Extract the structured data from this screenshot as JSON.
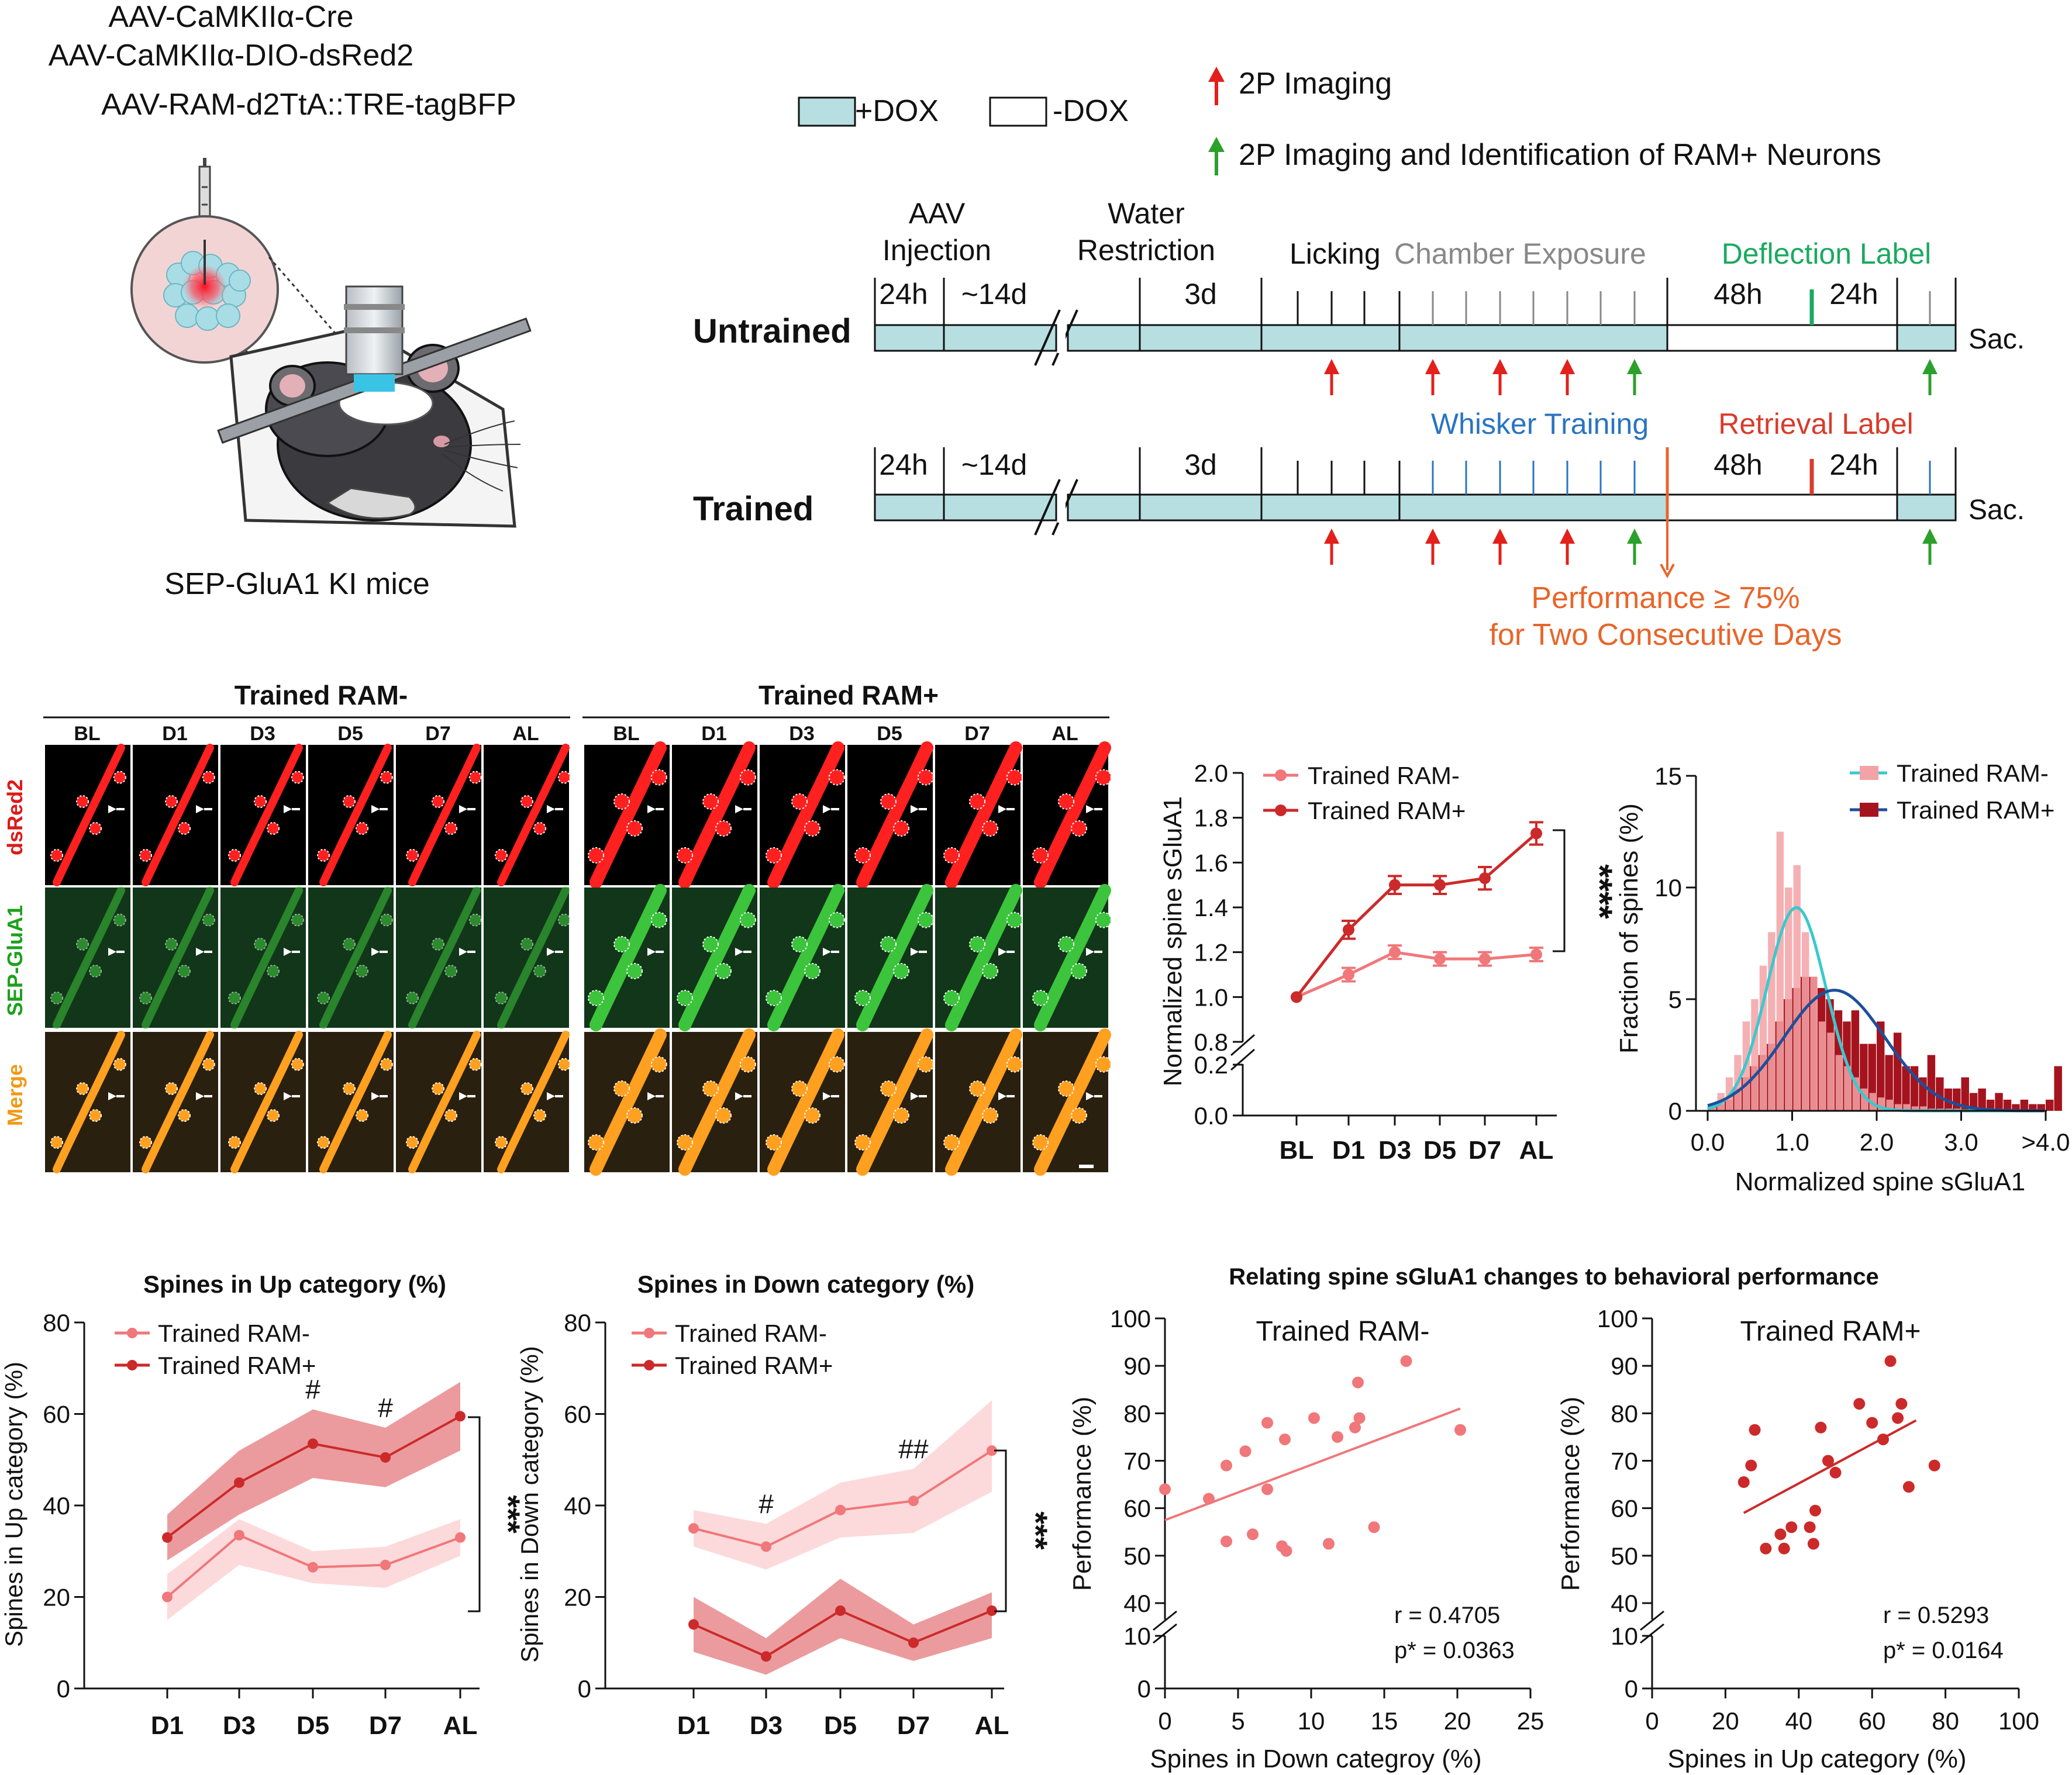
{
  "colors": {
    "dox": "#b7dfe1",
    "red_arrow": "#e3201b",
    "green_arrow": "#2ca02c",
    "deflection": "#1aaa60",
    "whisker": "#2a74c0",
    "retrieval": "#d93b2b",
    "performance": "#e8652a",
    "ram_minus": "#f0777a",
    "ram_plus": "#cc2a2a",
    "hist_cyan": "#39c9cf",
    "hist_blue": "#1d4f9a",
    "hist_pink": "#f3a2a6",
    "hist_dark": "#a5141e",
    "merge_label": "#f09a18"
  },
  "panelA": {
    "viruses": [
      "AAV-CaMKIIα-Cre",
      "AAV-CaMKIIα-DIO-dsRed2",
      "AAV-RAM-d2TtA::TRE-tagBFP"
    ],
    "mouse_label": "SEP-GluA1 KI mice"
  },
  "panelB": {
    "legend": {
      "dox_on": "+DOX",
      "dox_off": "-DOX",
      "red_arrow": "2P Imaging",
      "green_arrow": "2P Imaging  and Identification of RAM+ Neurons"
    },
    "phases": {
      "aav_1": "AAV",
      "aav_2": "Injection",
      "water_1": "Water",
      "water_2": "Restriction",
      "licking": "Licking",
      "chamber": "Chamber Exposure",
      "deflection": "Deflection Label",
      "whisker": "Whisker Training",
      "retrieval": "Retrieval Label"
    },
    "durations": {
      "d24h": "24h",
      "d14d": "~14d",
      "d3d": "3d",
      "d48h": "48h"
    },
    "rows": {
      "untrained": "Untrained",
      "trained": "Trained",
      "sac": "Sac."
    },
    "performance": [
      "Performance ≥ 75%",
      "for Two Consecutive Days"
    ]
  },
  "panelC": {
    "group_minus": "Trained RAM-",
    "group_plus": "Trained RAM+",
    "timepoints": [
      "BL",
      "D1",
      "D3",
      "D5",
      "D7",
      "AL"
    ],
    "channels": [
      "dsRed2",
      "SEP-GluA1",
      "Merge"
    ]
  },
  "chart_data": [
    {
      "type": "line",
      "title": "",
      "xlabel": "",
      "ylabel": "Normalized spine sGluA1",
      "categories": [
        "BL",
        "D1",
        "D3",
        "D5",
        "D7",
        "AL"
      ],
      "ylim": [
        0,
        2.0
      ],
      "yticks": [
        "0.0",
        "0.2",
        "0.8",
        "1.0",
        "1.2",
        "1.4",
        "1.6",
        "1.8",
        "2.0"
      ],
      "series": [
        {
          "name": "Trained RAM-",
          "values": [
            1.0,
            1.1,
            1.2,
            1.17,
            1.17,
            1.19
          ],
          "err": [
            0.0,
            0.03,
            0.03,
            0.03,
            0.03,
            0.03
          ]
        },
        {
          "name": "Trained RAM+",
          "values": [
            1.0,
            1.3,
            1.5,
            1.5,
            1.53,
            1.73
          ],
          "err": [
            0.0,
            0.04,
            0.04,
            0.04,
            0.05,
            0.05
          ]
        }
      ],
      "annotation": "****"
    },
    {
      "type": "histogram",
      "xlabel": "Normalized spine sGluA1",
      "ylabel": "Fraction of spines (%)",
      "xticks": [
        "0.0",
        "1.0",
        "2.0",
        "3.0",
        ">4.0"
      ],
      "yticks": [
        "0",
        "5",
        "10",
        "15"
      ],
      "ylim": [
        0,
        15
      ],
      "bin_width": 0.1,
      "series": [
        {
          "name": "Trained RAM-",
          "values": [
            0.3,
            0.8,
            1.5,
            2.5,
            4.0,
            5.0,
            6.5,
            8.0,
            12.5,
            10.0,
            11.0,
            8.0,
            6.0,
            4.0,
            3.5,
            2.5,
            2.0,
            1.5,
            1.0,
            0.8,
            0.6,
            0.5,
            0.3,
            0.3,
            0.2,
            0.2,
            0.1,
            0.1,
            0.1,
            0.1
          ]
        },
        {
          "name": "Trained RAM+",
          "values": [
            0.2,
            0.3,
            0.5,
            1.0,
            1.5,
            2.0,
            2.5,
            3.0,
            4.0,
            5.0,
            5.5,
            6.0,
            6.0,
            5.5,
            5.0,
            4.5,
            4.0,
            4.5,
            3.0,
            3.0,
            4.0,
            2.5,
            3.5,
            2.0,
            2.0,
            1.5,
            2.5,
            1.5,
            1.0,
            1.0,
            1.5,
            0.8,
            1.0,
            0.5,
            0.8,
            0.5,
            0.3,
            0.5,
            0.3,
            0.3,
            0.5,
            2.0
          ]
        }
      ],
      "fits": [
        {
          "name": "Trained RAM-",
          "mean": 1.05,
          "sd": 0.35,
          "peak": 9.1
        },
        {
          "name": "Trained RAM+",
          "mean": 1.5,
          "sd": 0.6,
          "peak": 5.4
        }
      ]
    },
    {
      "type": "line",
      "title": "Spines in Up category (%)",
      "ylabel": "Spines in Up category (%)",
      "categories": [
        "D1",
        "D3",
        "D5",
        "D7",
        "AL"
      ],
      "ylim": [
        0,
        80
      ],
      "yticks": [
        "0",
        "20",
        "40",
        "60",
        "80"
      ],
      "series": [
        {
          "name": "Trained RAM-",
          "values": [
            20,
            33.5,
            26.5,
            27,
            33
          ],
          "lower": [
            15,
            27,
            23,
            22,
            29
          ],
          "upper": [
            25,
            37,
            30,
            31,
            37
          ]
        },
        {
          "name": "Trained RAM+",
          "values": [
            33,
            45,
            53.5,
            50.5,
            59.5
          ],
          "lower": [
            28,
            38,
            46,
            44,
            52
          ],
          "upper": [
            38,
            52,
            61,
            57,
            67
          ]
        }
      ],
      "markers": [
        {
          "category": "D5",
          "text": "#"
        },
        {
          "category": "D7",
          "text": "#"
        }
      ],
      "annotation": "***"
    },
    {
      "type": "line",
      "title": "Spines in Down category (%)",
      "ylabel": "Spines in Down category (%)",
      "categories": [
        "D1",
        "D3",
        "D5",
        "D7",
        "AL"
      ],
      "ylim": [
        0,
        80
      ],
      "yticks": [
        "0",
        "20",
        "40",
        "60",
        "80"
      ],
      "series": [
        {
          "name": "Trained RAM-",
          "values": [
            35,
            31,
            39,
            41,
            52
          ],
          "lower": [
            31,
            26,
            33,
            34,
            43
          ],
          "upper": [
            39,
            36,
            45,
            48,
            63
          ]
        },
        {
          "name": "Trained RAM+",
          "values": [
            14,
            7,
            17,
            10,
            17
          ],
          "lower": [
            8,
            3,
            11,
            6,
            11
          ],
          "upper": [
            20,
            11,
            24,
            14,
            21
          ]
        }
      ],
      "markers": [
        {
          "category": "D3",
          "text": "#"
        },
        {
          "category": "D7",
          "text": "##"
        }
      ],
      "annotation": "***"
    },
    {
      "type": "scatter",
      "title": "Trained RAM-",
      "xlabel": "Spines in Down categroy (%)",
      "ylabel": "Performance (%)",
      "xlim": [
        0,
        25
      ],
      "xticks": [
        "0",
        "5",
        "10",
        "15",
        "20",
        "25"
      ],
      "yticks": [
        "0",
        "10",
        "40",
        "50",
        "60",
        "70",
        "80",
        "90",
        "100"
      ],
      "points": [
        [
          0,
          64
        ],
        [
          3,
          62
        ],
        [
          4.2,
          69
        ],
        [
          4.2,
          53
        ],
        [
          5.5,
          72
        ],
        [
          6,
          54.5
        ],
        [
          7,
          78
        ],
        [
          7,
          64
        ],
        [
          8.2,
          74.5
        ],
        [
          8,
          52
        ],
        [
          8.3,
          51
        ],
        [
          10.2,
          79
        ],
        [
          11.2,
          52.5
        ],
        [
          11.8,
          75
        ],
        [
          13,
          77
        ],
        [
          13.2,
          86.5
        ],
        [
          13.3,
          79
        ],
        [
          14.3,
          56
        ],
        [
          16.5,
          91
        ],
        [
          20.2,
          76.5
        ]
      ],
      "fit": [
        [
          0,
          57.5
        ],
        [
          20.2,
          81
        ]
      ],
      "stats": [
        "r = 0.4705",
        "p* = 0.0363"
      ],
      "section_title": "Relating spine sGluA1 changes to behavioral performance"
    },
    {
      "type": "scatter",
      "title": "Trained RAM+",
      "xlabel": "Spines in Up category (%)",
      "ylabel": "Performance (%)",
      "xlim": [
        0,
        100
      ],
      "xticks": [
        "0",
        "20",
        "40",
        "60",
        "80",
        "100"
      ],
      "yticks": [
        "0",
        "10",
        "40",
        "50",
        "60",
        "70",
        "80",
        "90",
        "100"
      ],
      "points": [
        [
          25,
          65.5
        ],
        [
          27,
          69
        ],
        [
          28,
          76.5
        ],
        [
          31,
          51.5
        ],
        [
          35,
          54.5
        ],
        [
          36,
          51.5
        ],
        [
          38,
          56
        ],
        [
          43,
          56
        ],
        [
          44,
          52.5
        ],
        [
          44.5,
          59.5
        ],
        [
          46,
          77
        ],
        [
          48,
          70
        ],
        [
          50,
          67.5
        ],
        [
          56.5,
          82
        ],
        [
          60,
          78
        ],
        [
          63,
          74.5
        ],
        [
          65,
          91
        ],
        [
          67,
          79
        ],
        [
          68,
          82
        ],
        [
          70,
          64.5
        ],
        [
          77,
          69
        ]
      ],
      "fit": [
        [
          25,
          59
        ],
        [
          72,
          78.5
        ]
      ],
      "stats": [
        "r = 0.5293",
        "p* = 0.0164"
      ]
    }
  ]
}
